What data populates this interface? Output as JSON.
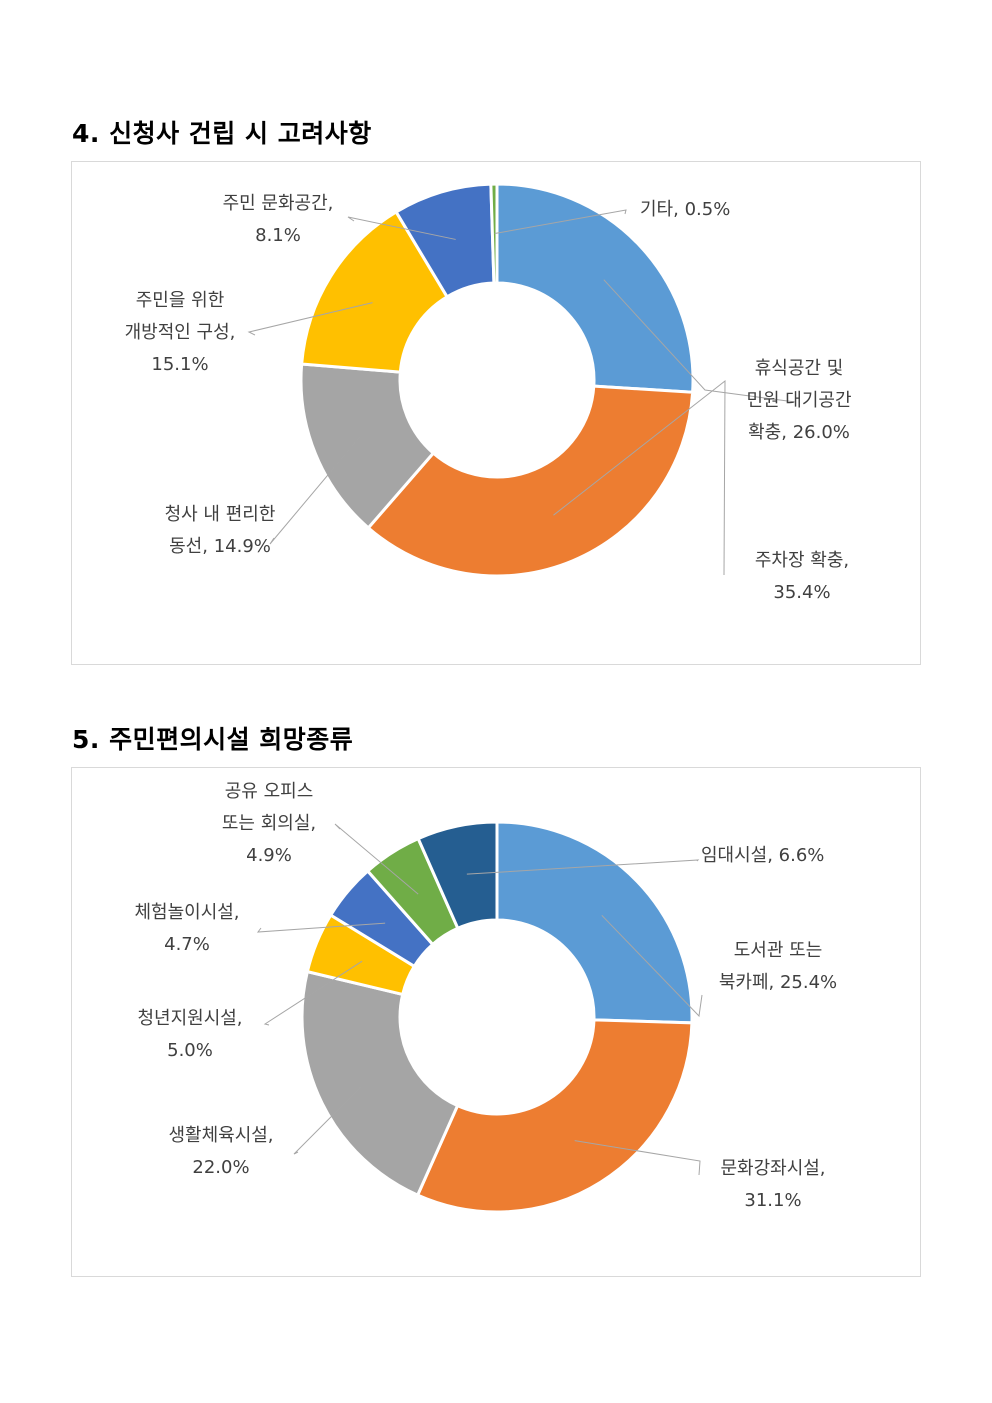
{
  "headings": {
    "section4": "4. 신청사 건립 시 고려사항",
    "section5": "5. 주민편의시설 희망종류"
  },
  "chart_data": [
    {
      "type": "pie",
      "variant": "donut",
      "title": "",
      "slices": [
        {
          "label": "휴식공간 및 민원 대기공간 확충",
          "value": 26.0,
          "label_lines": [
            "휴식공간 및",
            "민원 대기공간",
            "확충, 26.0%"
          ],
          "color": "#5B9BD5"
        },
        {
          "label": "주차장 확충",
          "value": 35.4,
          "label_lines": [
            "주차장 확충,",
            "35.4%"
          ],
          "color": "#ED7D31"
        },
        {
          "label": "청사 내 편리한 동선",
          "value": 14.9,
          "label_lines": [
            "청사 내 편리한",
            "동선, 14.9%"
          ],
          "color": "#A5A5A5"
        },
        {
          "label": "주민을 위한 개방적인 구성",
          "value": 15.1,
          "label_lines": [
            "주민을 위한",
            "개방적인 구성,",
            "15.1%"
          ],
          "color": "#FFC000"
        },
        {
          "label": "주민 문화공간",
          "value": 8.1,
          "label_lines": [
            "주민 문화공간,",
            "8.1%"
          ],
          "color": "#4472C4"
        },
        {
          "label": "기타",
          "value": 0.5,
          "label_lines": [
            "기타, 0.5%"
          ],
          "color": "#70AD47"
        }
      ]
    },
    {
      "type": "pie",
      "variant": "donut",
      "title": "",
      "slices": [
        {
          "label": "도서관 또는 북카페",
          "value": 25.4,
          "label_lines": [
            "도서관 또는",
            "북카페, 25.4%"
          ],
          "color": "#5B9BD5"
        },
        {
          "label": "문화강좌시설",
          "value": 31.1,
          "label_lines": [
            "문화강좌시설,",
            "31.1%"
          ],
          "color": "#ED7D31"
        },
        {
          "label": "생활체육시설",
          "value": 22.0,
          "label_lines": [
            "생활체육시설,",
            "22.0%"
          ],
          "color": "#A5A5A5"
        },
        {
          "label": "청년지원시설",
          "value": 5.0,
          "label_lines": [
            "청년지원시설,",
            "5.0%"
          ],
          "color": "#FFC000"
        },
        {
          "label": "체험놀이시설",
          "value": 4.7,
          "label_lines": [
            "체험놀이시설,",
            "4.7%"
          ],
          "color": "#4472C4"
        },
        {
          "label": "공유 오피스 또는 회의실",
          "value": 4.9,
          "label_lines": [
            "공유 오피스",
            "또는 회의실,",
            "4.9%"
          ],
          "color": "#70AD47"
        },
        {
          "label": "임대시설",
          "value": 6.6,
          "label_lines": [
            "임대시설, 6.6%"
          ],
          "color": "#255E91"
        }
      ]
    }
  ]
}
